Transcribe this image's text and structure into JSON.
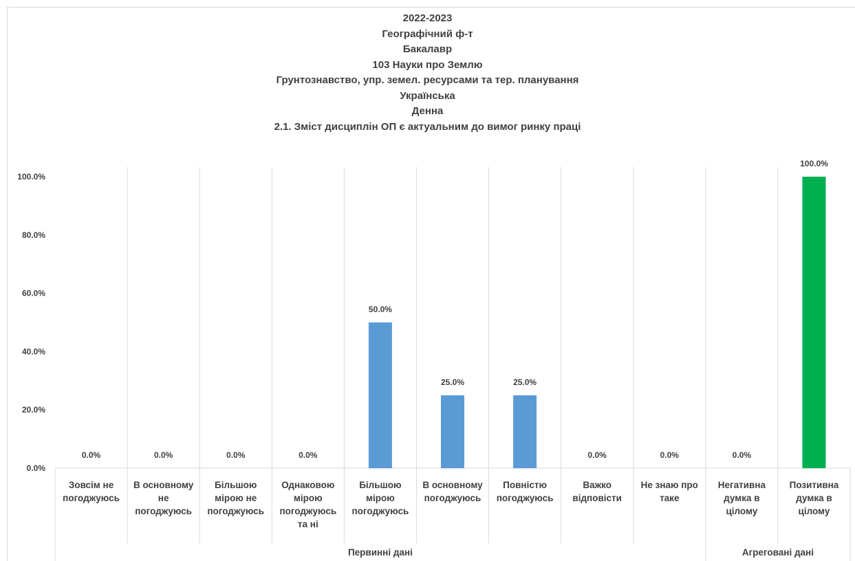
{
  "chart_data": {
    "type": "bar",
    "title_lines": [
      "2022-2023",
      "Географічний ф-т",
      "Бакалавр",
      "103 Науки про Землю",
      "Грунтознавство, упр. земел. ресурсами та тер. планування",
      "Українська",
      "Денна",
      "2.1. Зміст дисциплін ОП є актуальним до вимог ринку праці"
    ],
    "categories": [
      "Зовсім не погоджуюсь",
      "В основному не погоджуюсь",
      "Більшою мірою не погоджуюсь",
      "Однаковою мірою погоджуюсь та ні",
      "Більшою мірою погоджуюсь",
      "В основному погоджуюсь",
      "Повністю погоджуюсь",
      "Важко відповісти",
      "Не знаю про таке",
      "Негативна думка в цілому",
      "Позитивна думка в цілому"
    ],
    "category_label_lines": [
      [
        "Зовсім не",
        "погоджуюсь"
      ],
      [
        "В основному",
        "не",
        "погоджуюсь"
      ],
      [
        "Більшою",
        "мірою не",
        "погоджуюсь"
      ],
      [
        "Однаковою",
        "мірою",
        "погоджуюсь",
        "та ні"
      ],
      [
        "Більшою",
        "мірою",
        "погоджуюсь"
      ],
      [
        "В основному",
        "погоджуюсь"
      ],
      [
        "Повністю",
        "погоджуюсь"
      ],
      [
        "Важко",
        "відповісти"
      ],
      [
        "Не знаю про",
        "таке"
      ],
      [
        "Негативна",
        "думка в",
        "цілому"
      ],
      [
        "Позитивна",
        "думка в",
        "цілому"
      ]
    ],
    "values": [
      0,
      0,
      0,
      0,
      50,
      25,
      25,
      0,
      0,
      0,
      100
    ],
    "value_labels": [
      "0.0%",
      "0.0%",
      "0.0%",
      "0.0%",
      "50.0%",
      "25.0%",
      "25.0%",
      "0.0%",
      "0.0%",
      "0.0%",
      "100.0%"
    ],
    "groups": [
      {
        "label": "Первинні дані",
        "count": 9
      },
      {
        "label": "Агреговані дані",
        "count": 2
      }
    ],
    "ylim": [
      0,
      100
    ],
    "yticks": [
      0,
      20,
      40,
      60,
      80,
      100
    ],
    "ytick_labels": [
      "0.0%",
      "20.0%",
      "40.0%",
      "60.0%",
      "80.0%",
      "100.0%"
    ],
    "grid": "vertical",
    "bar_colors": [
      "#5b9bd5",
      "#5b9bd5",
      "#5b9bd5",
      "#5b9bd5",
      "#5b9bd5",
      "#5b9bd5",
      "#5b9bd5",
      "#5b9bd5",
      "#5b9bd5",
      "#5b9bd5",
      "#00b050"
    ],
    "grid_color": "#d9d9d9",
    "text_color": "#404040"
  }
}
